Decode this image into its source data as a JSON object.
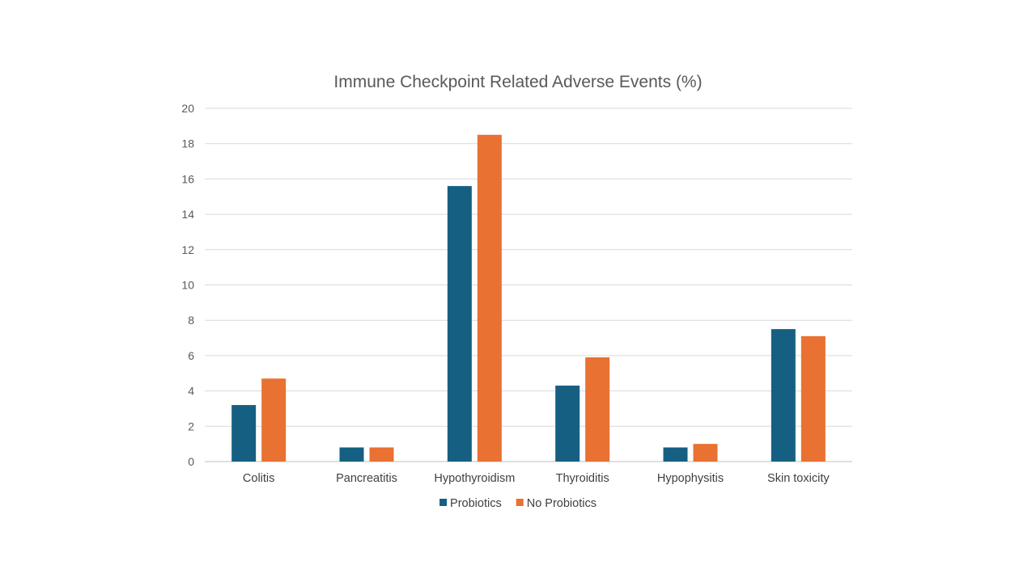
{
  "chart_data": {
    "type": "bar",
    "title": "Immune Checkpoint Related Adverse Events (%)",
    "categories": [
      "Colitis",
      "Pancreatitis",
      "Hypothyroidism",
      "Thyroiditis",
      "Hypophysitis",
      "Skin toxicity"
    ],
    "series": [
      {
        "name": "Probiotics",
        "values": [
          3.2,
          0.8,
          15.6,
          4.3,
          0.8,
          7.5
        ],
        "color": "#156082"
      },
      {
        "name": "No Probiotics",
        "values": [
          4.7,
          0.8,
          18.5,
          5.9,
          1.0,
          7.1
        ],
        "color": "#E97132"
      }
    ],
    "ylim": [
      0,
      20
    ],
    "yticks": [
      "0",
      "2",
      "4",
      "6",
      "8",
      "10",
      "12",
      "14",
      "16",
      "18",
      "20"
    ],
    "grid": true,
    "legend": "bottom"
  }
}
